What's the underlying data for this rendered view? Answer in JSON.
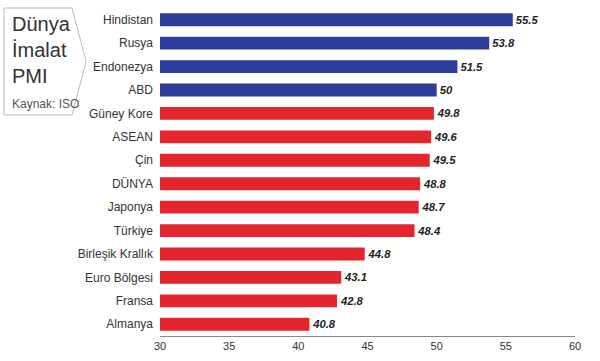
{
  "chart_data": {
    "type": "bar",
    "orientation": "horizontal",
    "title": "Dünya İmalat PMI",
    "subtitle": "Kaynak: ISO",
    "categories": [
      "Hindistan",
      "Rusya",
      "Endonezya",
      "ABD",
      "Güney Kore",
      "ASEAN",
      "Çin",
      "DÜNYA",
      "Japonya",
      "Türkiye",
      "Birleşik Krallık",
      "Euro Bölgesi",
      "Fransa",
      "Almanya"
    ],
    "values": [
      55.5,
      53.8,
      51.5,
      50,
      49.8,
      49.6,
      49.5,
      48.8,
      48.7,
      48.4,
      44.8,
      43.1,
      42.8,
      40.8
    ],
    "colors": [
      "#2c3e9a",
      "#2c3e9a",
      "#2c3e9a",
      "#2c3e9a",
      "#e3262d",
      "#e3262d",
      "#e3262d",
      "#e3262d",
      "#e3262d",
      "#e3262d",
      "#e3262d",
      "#e3262d",
      "#e3262d",
      "#e3262d"
    ],
    "xlim": [
      30,
      60
    ],
    "xticks": [
      30,
      35,
      40,
      45,
      50,
      55,
      60
    ],
    "grid": false,
    "data_labels": true
  }
}
